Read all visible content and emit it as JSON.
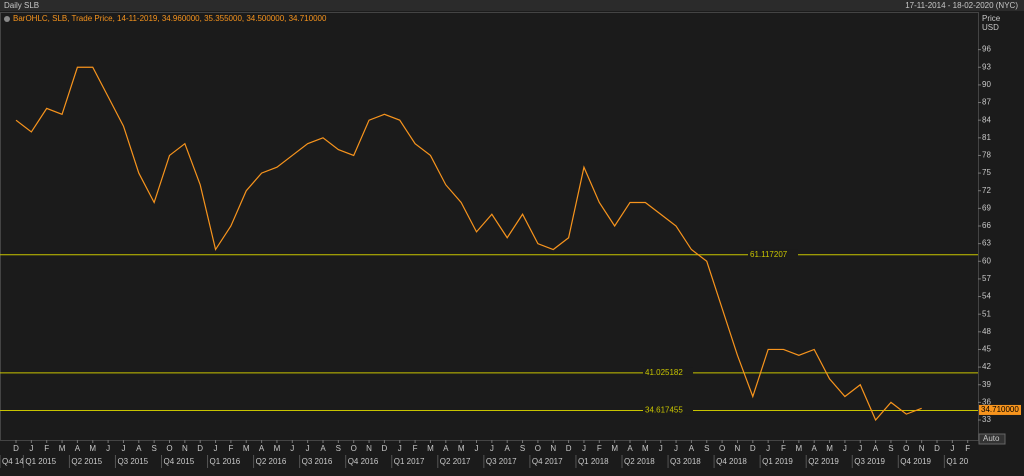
{
  "header": {
    "title": "Daily SLB",
    "range": "17-11-2014 - 18-02-2020 (NYC)"
  },
  "chart_data": {
    "type": "line",
    "legend": "BarOHLC, SLB, Trade Price, 14-11-2019, 34.960000, 35.355000, 34.500000, 34.710000",
    "y_axis_label": "Price",
    "y_axis_unit": "USD",
    "categories": [
      "D",
      "J",
      "F",
      "M",
      "A",
      "M",
      "J",
      "J",
      "A",
      "S",
      "O",
      "N",
      "D",
      "J",
      "F",
      "M",
      "A",
      "M",
      "J",
      "J",
      "A",
      "S",
      "O",
      "N",
      "D",
      "J",
      "F",
      "M",
      "A",
      "M",
      "J",
      "J",
      "A",
      "S",
      "O",
      "N",
      "D",
      "J",
      "F",
      "M",
      "A",
      "M",
      "J",
      "J",
      "A",
      "S",
      "O",
      "N",
      "D",
      "J",
      "F",
      "M",
      "A",
      "M",
      "J",
      "J",
      "A",
      "S",
      "O",
      "N",
      "D",
      "J",
      "F"
    ],
    "quarters": [
      "Q4 14",
      "Q1 2015",
      "Q2 2015",
      "Q3 2015",
      "Q4 2015",
      "Q1 2016",
      "Q2 2016",
      "Q3 2016",
      "Q4 2016",
      "Q1 2017",
      "Q2 2017",
      "Q3 2017",
      "Q4 2017",
      "Q1 2018",
      "Q2 2018",
      "Q3 2018",
      "Q4 2018",
      "Q1 2019",
      "Q2 2019",
      "Q3 2019",
      "Q4 2019",
      "Q1 20"
    ],
    "series": [
      {
        "name": "SLB",
        "color": "#f7941d",
        "values": [
          84,
          82,
          86,
          85,
          93,
          93,
          88,
          83,
          75,
          70,
          78,
          80,
          73,
          62,
          66,
          72,
          75,
          76,
          78,
          80,
          81,
          79,
          78,
          84,
          85,
          84,
          80,
          78,
          73,
          70,
          65,
          68,
          64,
          68,
          63,
          62,
          64,
          76,
          70,
          66,
          70,
          70,
          68,
          66,
          62,
          60,
          52,
          44,
          37,
          45,
          45,
          44,
          45,
          40,
          37,
          39,
          33,
          36,
          34,
          35,
          null,
          null,
          null
        ]
      }
    ],
    "ylim": [
      29.6,
      102.4
    ],
    "yticks": [
      33,
      36,
      39,
      42,
      45,
      48,
      51,
      54,
      57,
      60,
      63,
      66,
      69,
      72,
      75,
      78,
      81,
      84,
      87,
      90,
      93,
      96
    ],
    "hlines": [
      61.117207,
      41.025182,
      34.617455
    ],
    "hline_color": "#c8c400",
    "last_price": {
      "value": 34.71,
      "label": "34.710000"
    },
    "button": "Auto"
  }
}
